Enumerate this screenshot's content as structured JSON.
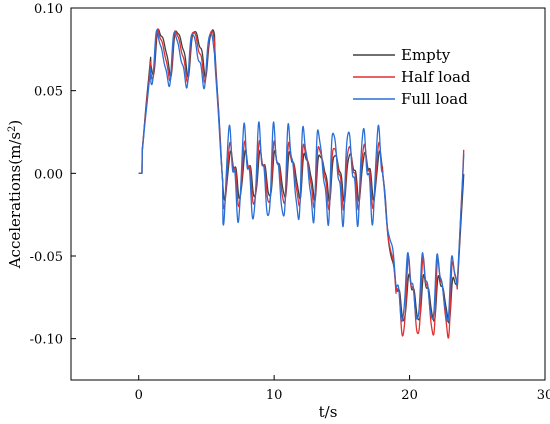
{
  "chart_data": {
    "type": "line",
    "xlabel": "t/s",
    "ylabel_main": "Accelerations(m/s",
    "ylabel_sup": "2",
    "ylabel_close": ")",
    "xlim": [
      -5,
      30
    ],
    "ylim": [
      -0.125,
      0.1
    ],
    "x_ticks": [
      0,
      10,
      20,
      30
    ],
    "x_tick_labels": [
      "0",
      "10",
      "20",
      "30"
    ],
    "y_ticks": [
      0.1,
      0.05,
      0.0,
      -0.05,
      -0.1
    ],
    "y_tick_labels": [
      "0.10",
      "0.05",
      "0.00",
      "-0.05",
      "-0.10"
    ],
    "grid": false,
    "legend_position": "top-right",
    "series": [
      {
        "name": "Empty",
        "color": "#404040",
        "phase_shift": 0.0,
        "ripple_scale": 0.55,
        "segments": [
          {
            "t0": 0.0,
            "t1": 0.25,
            "base0": 0.0,
            "base1": 0.0,
            "ripple": 0.0,
            "period": 1.3
          },
          {
            "t0": 0.25,
            "t1": 0.9,
            "base0": 0.01,
            "base1": 0.075,
            "ripple": 0.004,
            "period": 1.3
          },
          {
            "t0": 0.9,
            "t1": 5.6,
            "base0": 0.075,
            "base1": 0.075,
            "ripple": 0.012,
            "period": 1.3
          },
          {
            "t0": 5.6,
            "t1": 6.2,
            "base0": 0.075,
            "base1": 0.0,
            "ripple": 0.004,
            "period": 1.3
          },
          {
            "t0": 6.2,
            "t1": 18.0,
            "base0": 0.0,
            "base1": 0.0,
            "ripple": 0.012,
            "period": 1.1
          },
          {
            "t0": 18.0,
            "t1": 19.0,
            "base0": 0.0,
            "base1": -0.075,
            "ripple": 0.006,
            "period": 1.1
          },
          {
            "t0": 19.0,
            "t1": 23.5,
            "base0": -0.075,
            "base1": -0.075,
            "ripple": 0.012,
            "period": 1.1
          },
          {
            "t0": 23.5,
            "t1": 24.0,
            "base0": -0.075,
            "base1": 0.005,
            "ripple": 0.004,
            "period": 1.1
          }
        ]
      },
      {
        "name": "Half load",
        "color": "#e03030",
        "phase_shift": 0.35,
        "ripple_scale": 0.85,
        "segments": [
          {
            "t0": 0.0,
            "t1": 0.25,
            "base0": 0.0,
            "base1": 0.0,
            "ripple": 0.0,
            "period": 1.3
          },
          {
            "t0": 0.25,
            "t1": 0.9,
            "base0": 0.01,
            "base1": 0.073,
            "ripple": 0.004,
            "period": 1.3
          },
          {
            "t0": 0.9,
            "t1": 5.6,
            "base0": 0.073,
            "base1": 0.073,
            "ripple": 0.013,
            "period": 1.3
          },
          {
            "t0": 5.6,
            "t1": 6.2,
            "base0": 0.073,
            "base1": 0.0,
            "ripple": 0.004,
            "period": 1.3
          },
          {
            "t0": 6.2,
            "t1": 18.0,
            "base0": 0.0,
            "base1": 0.0,
            "ripple": 0.016,
            "period": 1.1
          },
          {
            "t0": 18.0,
            "t1": 19.0,
            "base0": 0.0,
            "base1": -0.075,
            "ripple": 0.006,
            "period": 1.1
          },
          {
            "t0": 19.0,
            "t1": 23.5,
            "base0": -0.075,
            "base1": -0.075,
            "ripple": 0.02,
            "period": 1.1
          },
          {
            "t0": 23.5,
            "t1": 24.0,
            "base0": -0.075,
            "base1": 0.019,
            "ripple": 0.004,
            "period": 1.1
          }
        ]
      },
      {
        "name": "Full load",
        "color": "#2a6fd6",
        "phase_shift": 0.7,
        "ripple_scale": 1.0,
        "segments": [
          {
            "t0": 0.0,
            "t1": 0.25,
            "base0": 0.0,
            "base1": 0.0,
            "ripple": 0.0,
            "period": 1.3
          },
          {
            "t0": 0.25,
            "t1": 0.9,
            "base0": 0.01,
            "base1": 0.07,
            "ripple": 0.004,
            "period": 1.3
          },
          {
            "t0": 0.9,
            "t1": 5.6,
            "base0": 0.07,
            "base1": 0.07,
            "ripple": 0.014,
            "period": 1.3
          },
          {
            "t0": 5.6,
            "t1": 6.2,
            "base0": 0.07,
            "base1": 0.0,
            "ripple": 0.004,
            "period": 1.3
          },
          {
            "t0": 6.2,
            "t1": 18.0,
            "base0": 0.0,
            "base1": 0.0,
            "ripple": 0.024,
            "period": 1.1
          },
          {
            "t0": 18.0,
            "t1": 19.0,
            "base0": 0.0,
            "base1": -0.07,
            "ripple": 0.006,
            "period": 1.1
          },
          {
            "t0": 19.0,
            "t1": 23.5,
            "base0": -0.07,
            "base1": -0.07,
            "ripple": 0.017,
            "period": 1.1
          },
          {
            "t0": 23.5,
            "t1": 24.0,
            "base0": -0.07,
            "base1": 0.015,
            "ripple": 0.004,
            "period": 1.1
          }
        ]
      }
    ]
  }
}
